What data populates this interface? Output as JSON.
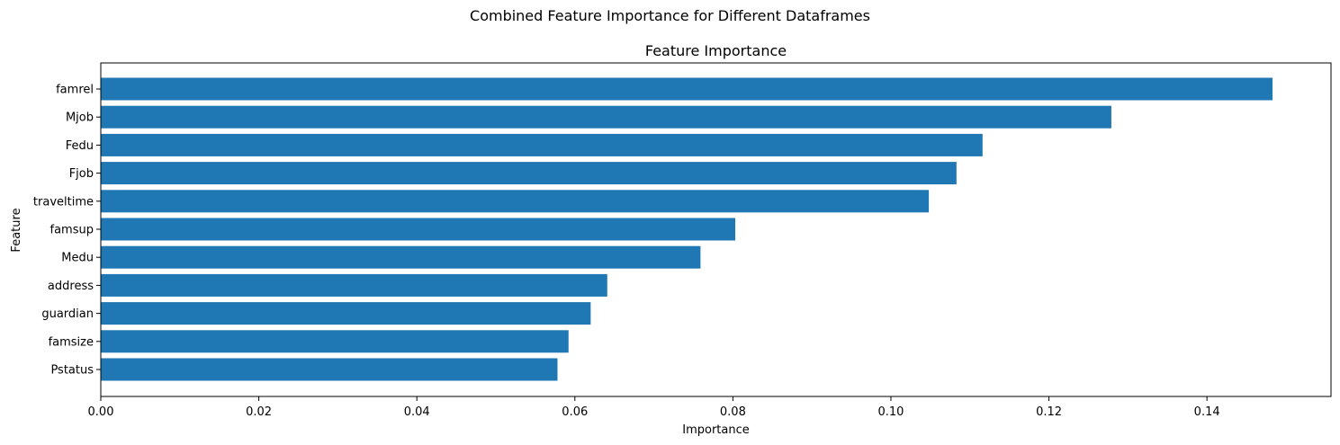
{
  "chart_data": {
    "type": "bar",
    "orientation": "horizontal",
    "suptitle": "Combined Feature Importance for Different Dataframes",
    "title": "Feature Importance",
    "xlabel": "Importance",
    "ylabel": "Feature",
    "categories": [
      "famrel",
      "Mjob",
      "Fedu",
      "Fjob",
      "traveltime",
      "famsup",
      "Medu",
      "address",
      "guardian",
      "famsize",
      "Pstatus"
    ],
    "values": [
      0.1483,
      0.1279,
      0.1116,
      0.1083,
      0.1048,
      0.0803,
      0.0759,
      0.0641,
      0.062,
      0.0592,
      0.0578
    ],
    "xlim": [
      0,
      0.1557
    ],
    "xticks": [
      0.0,
      0.02,
      0.04,
      0.06,
      0.08,
      0.1,
      0.12,
      0.14
    ],
    "xtick_labels": [
      "0.00",
      "0.02",
      "0.04",
      "0.06",
      "0.08",
      "0.10",
      "0.12",
      "0.14"
    ],
    "grid": false,
    "bar_color": "#1f77b4"
  }
}
